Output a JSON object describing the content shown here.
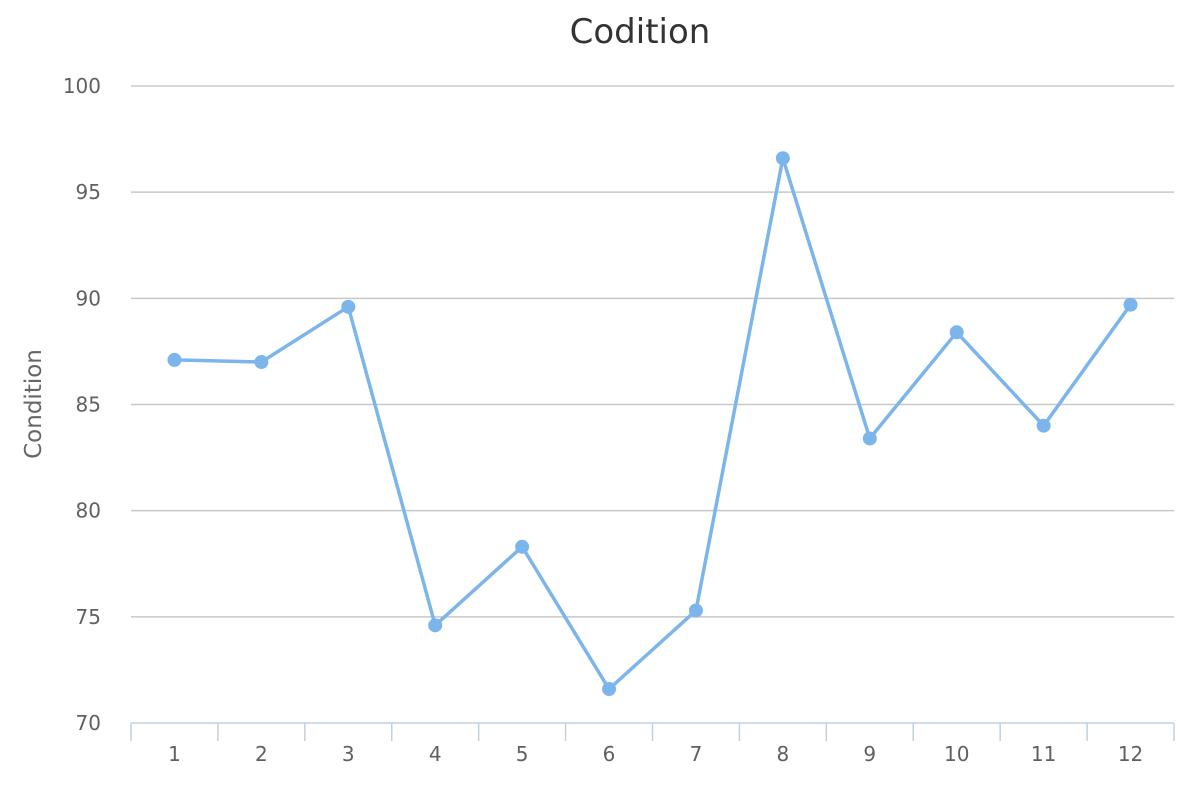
{
  "chart_data": {
    "type": "line",
    "title": "Codition",
    "xlabel": "",
    "ylabel": "Condition",
    "categories": [
      "1",
      "2",
      "3",
      "4",
      "5",
      "6",
      "7",
      "8",
      "9",
      "10",
      "11",
      "12"
    ],
    "series": [
      {
        "values": [
          87.1,
          87.0,
          89.6,
          74.6,
          78.3,
          71.6,
          75.3,
          96.6,
          83.4,
          88.4,
          84.0,
          89.7
        ]
      }
    ],
    "yticks": [
      "70",
      "75",
      "80",
      "85",
      "90",
      "95",
      "100"
    ],
    "ylim": [
      70,
      100
    ],
    "grid": true,
    "legend": "none",
    "colors": {
      "series": "#7cb5ec",
      "grid": "#c8c8c8",
      "axis": "#c0d0e0"
    }
  }
}
